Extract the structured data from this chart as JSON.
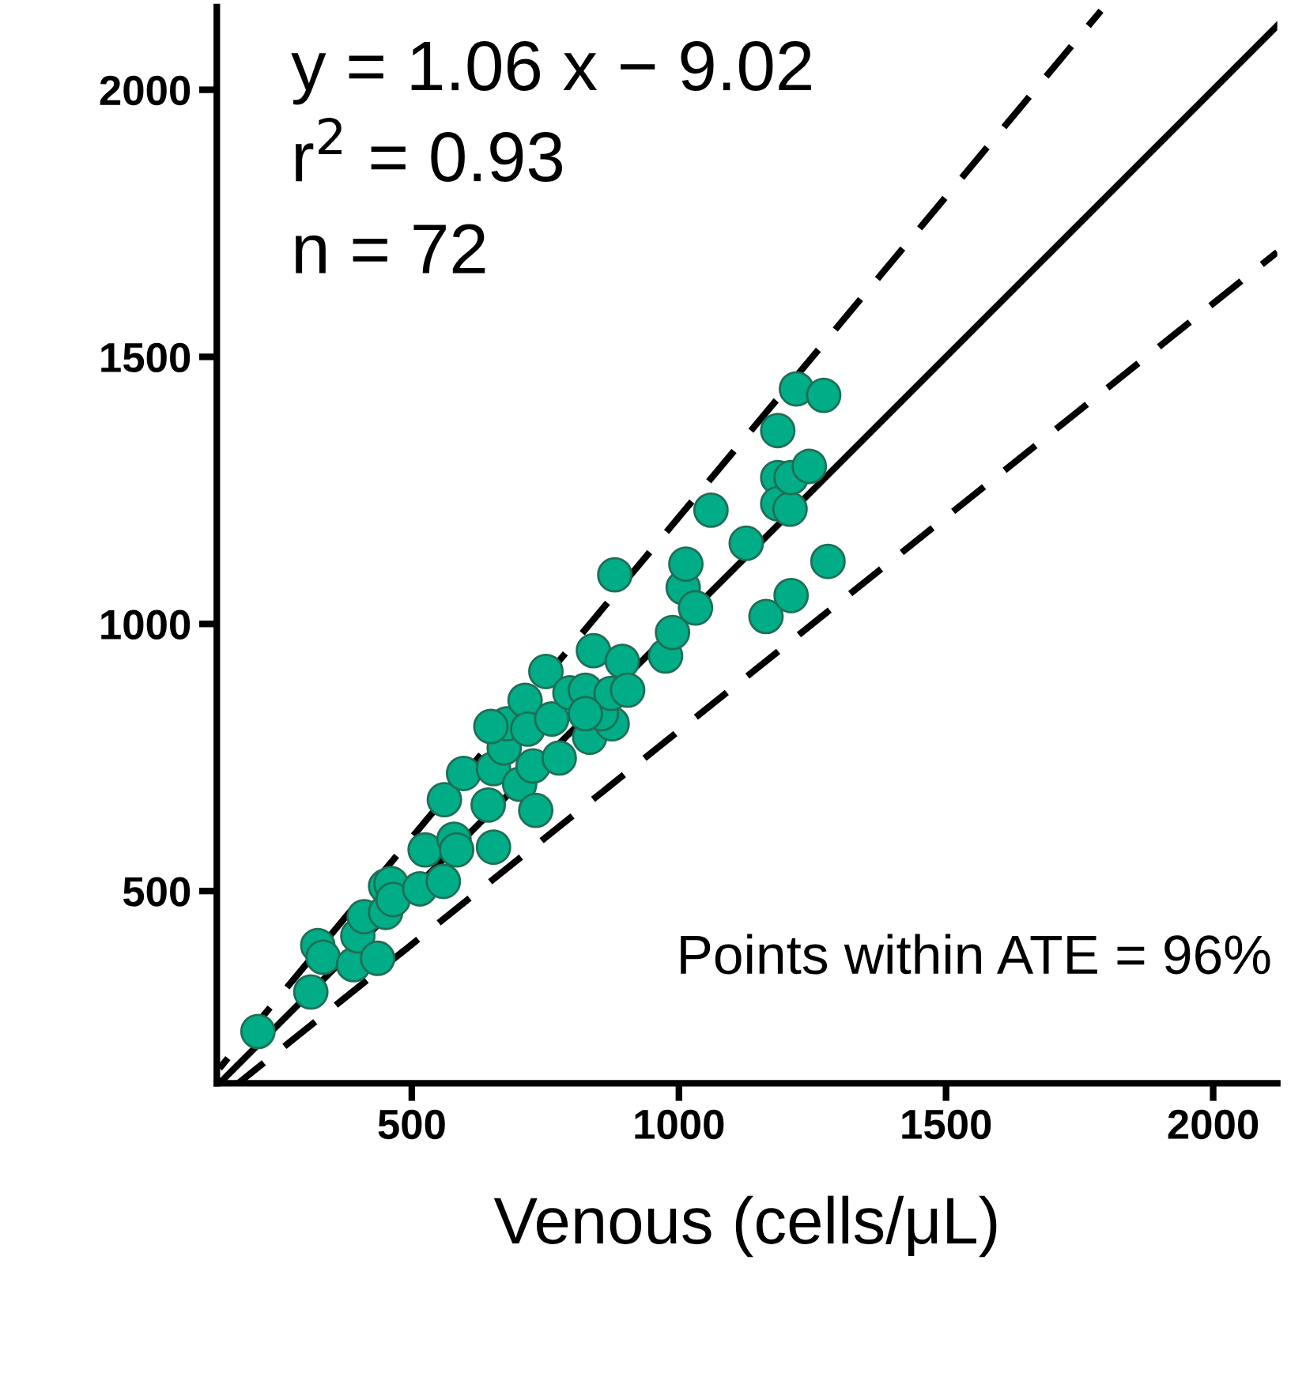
{
  "chart_data": {
    "type": "scatter",
    "xlabel": "Venous (cells/μL)",
    "xlim": [
      135,
      2120
    ],
    "ylim": [
      140,
      2155
    ],
    "xticks": [
      500,
      1000,
      1500,
      2000
    ],
    "yticks": [
      500,
      1000,
      1500,
      2000
    ],
    "grid": false,
    "annotations": [
      "y = 1.06 x − 9.02",
      "r$^{2}$ = 0.93",
      "n = 72",
      "Points within ATE = 96%"
    ],
    "series": [
      {
        "color": "#00ad86",
        "marker": "circle",
        "x": [
          212,
          311,
          324,
          334,
          391,
          399,
          411,
          436,
          451,
          451,
          461,
          465,
          515,
          525,
          559,
          579,
          584,
          561,
          597,
          643,
          653,
          653,
          673,
          702,
          727,
          732,
          776,
          678,
          712,
          717,
          751,
          762,
          796,
          825,
          840,
          833,
          875,
          855,
          873,
          894,
          904,
          975,
          988,
          1008,
          1013,
          1031,
          880,
          1060,
          1126,
          1163,
          1210,
          1279,
          1185,
          1185,
          1208,
          1210,
          1244,
          1185,
          1220,
          1271,
          648,
          825
        ],
        "values": [
          237,
          311,
          398,
          376,
          362,
          416,
          452,
          374,
          460,
          509,
          514,
          484,
          504,
          577,
          518,
          597,
          577,
          671,
          720,
          661,
          582,
          729,
          768,
          700,
          734,
          651,
          749,
          813,
          857,
          803,
          911,
          822,
          871,
          876,
          950,
          788,
          813,
          832,
          870,
          930,
          876,
          940,
          984,
          1068,
          1112,
          1030,
          1092,
          1213,
          1151,
          1014,
          1053,
          1117,
          1274,
          1225,
          1215,
          1274,
          1295,
          1362,
          1440,
          1428,
          808,
          832
        ]
      },
      {
        "type": "line",
        "color": "#000000",
        "line_style": "dashed",
        "marker": "none",
        "x": [
          140,
          1790
        ],
        "values": [
          168,
          2148
        ]
      },
      {
        "type": "line",
        "color": "#000000",
        "line_style": "solid",
        "marker": "none",
        "x": [
          140,
          2120
        ],
        "values": [
          140,
          2120
        ]
      },
      {
        "type": "line",
        "color": "#000000",
        "line_style": "dashed",
        "marker": "none",
        "x": [
          175,
          2120
        ],
        "values": [
          140,
          1696
        ]
      }
    ]
  }
}
